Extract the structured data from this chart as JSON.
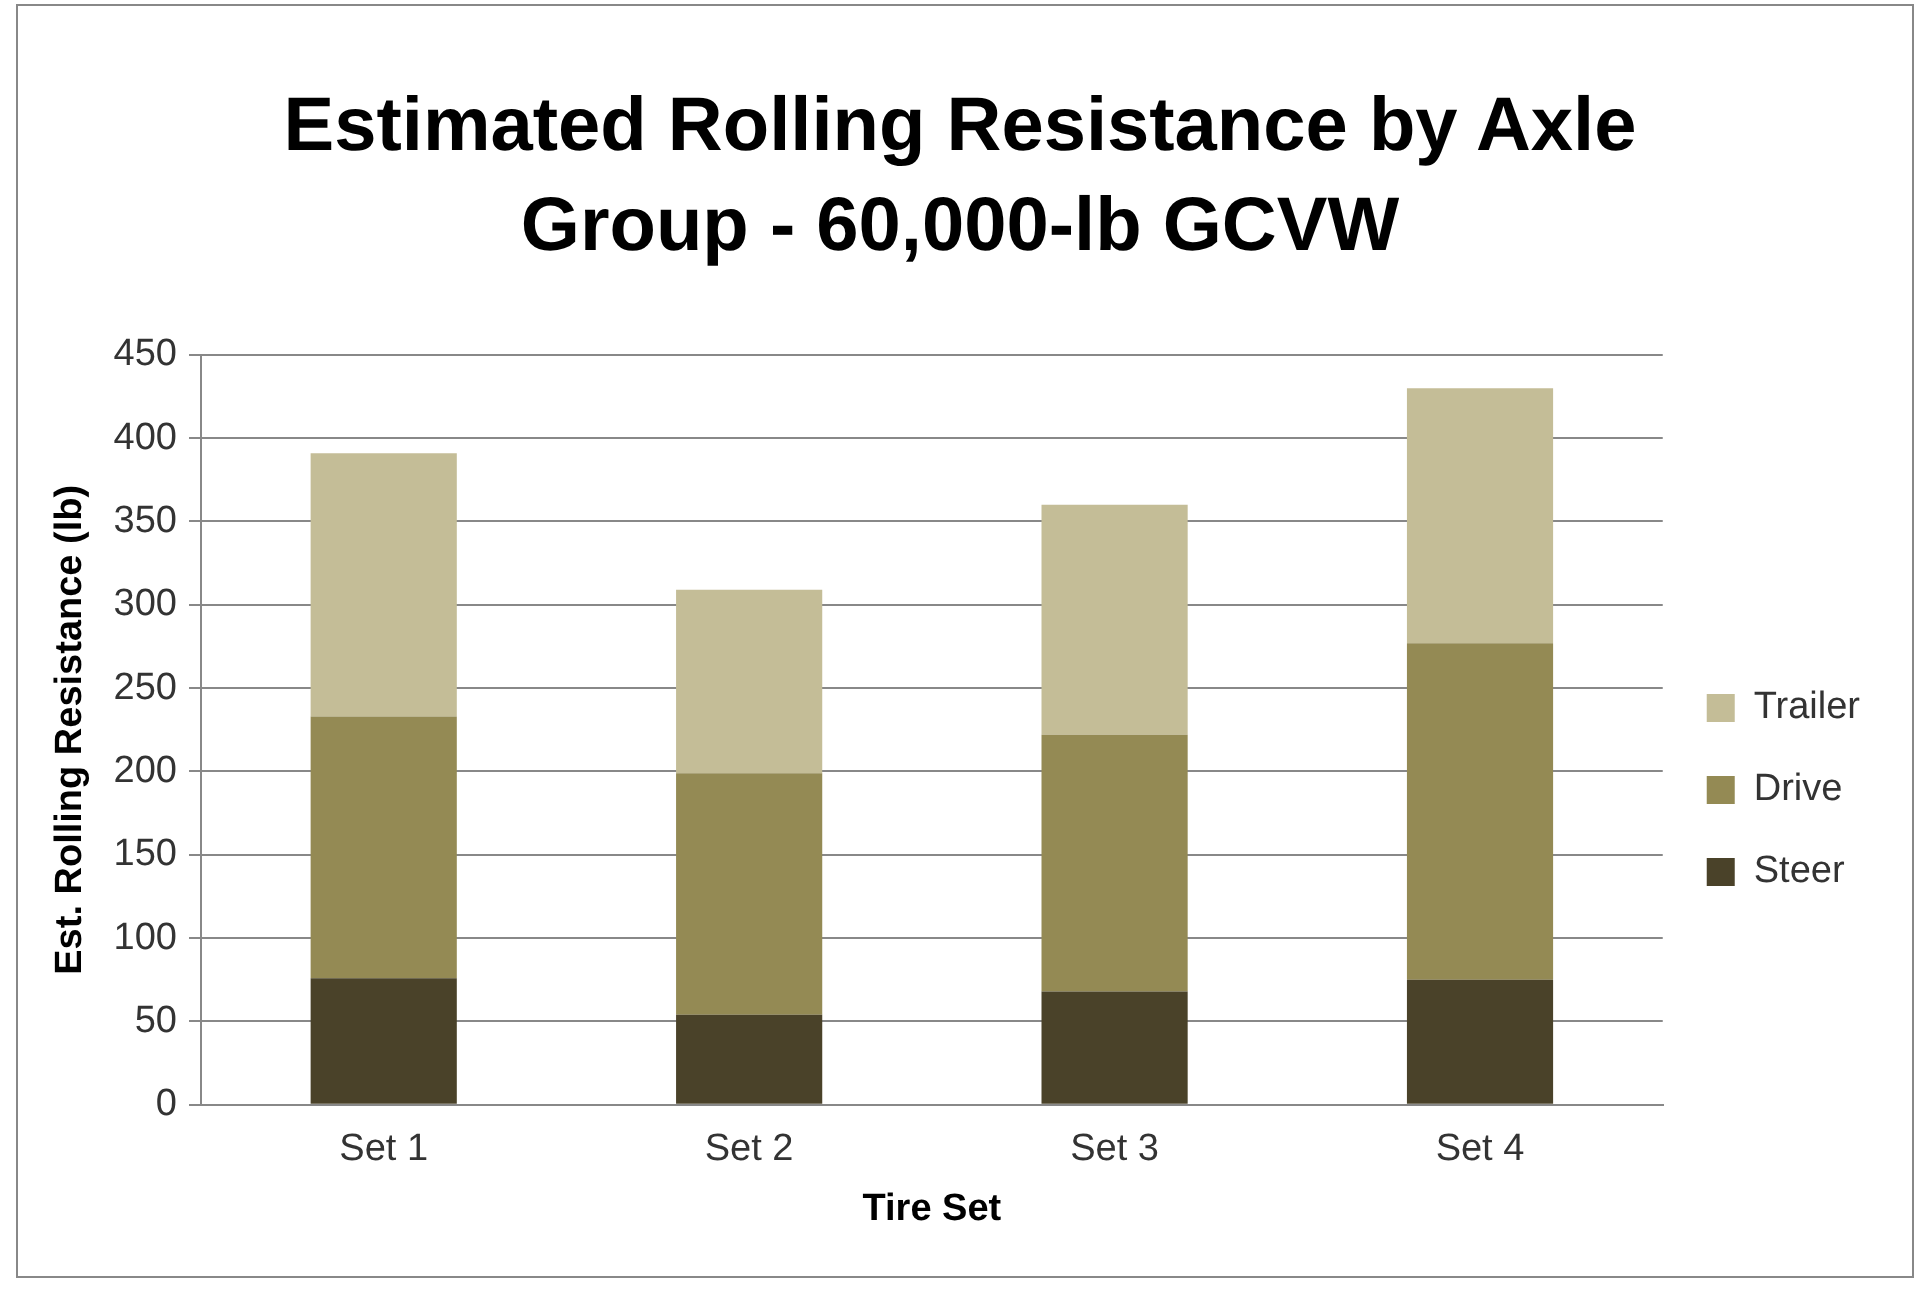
{
  "chart_data": {
    "type": "bar",
    "title": "Estimated Rolling Resistance by Axle Group - 60,000-lb GCVW",
    "xlabel": "Tire Set",
    "ylabel": "Est. Rolling Resistance (lb)",
    "categories": [
      "Set 1",
      "Set 2",
      "Set 3",
      "Set 4"
    ],
    "series": [
      {
        "name": "Steer",
        "color": "#4a4229",
        "values": [
          76,
          54,
          68,
          75
        ]
      },
      {
        "name": "Drive",
        "color": "#948a54",
        "values": [
          157,
          145,
          154,
          202
        ]
      },
      {
        "name": "Trailer",
        "color": "#c4bd97",
        "values": [
          158,
          110,
          138,
          153
        ]
      }
    ],
    "stacked": true,
    "ylim": [
      0,
      450
    ],
    "yticks": [
      0,
      50,
      100,
      150,
      200,
      250,
      300,
      350,
      400,
      450
    ],
    "grid": "y",
    "legend": "right"
  }
}
